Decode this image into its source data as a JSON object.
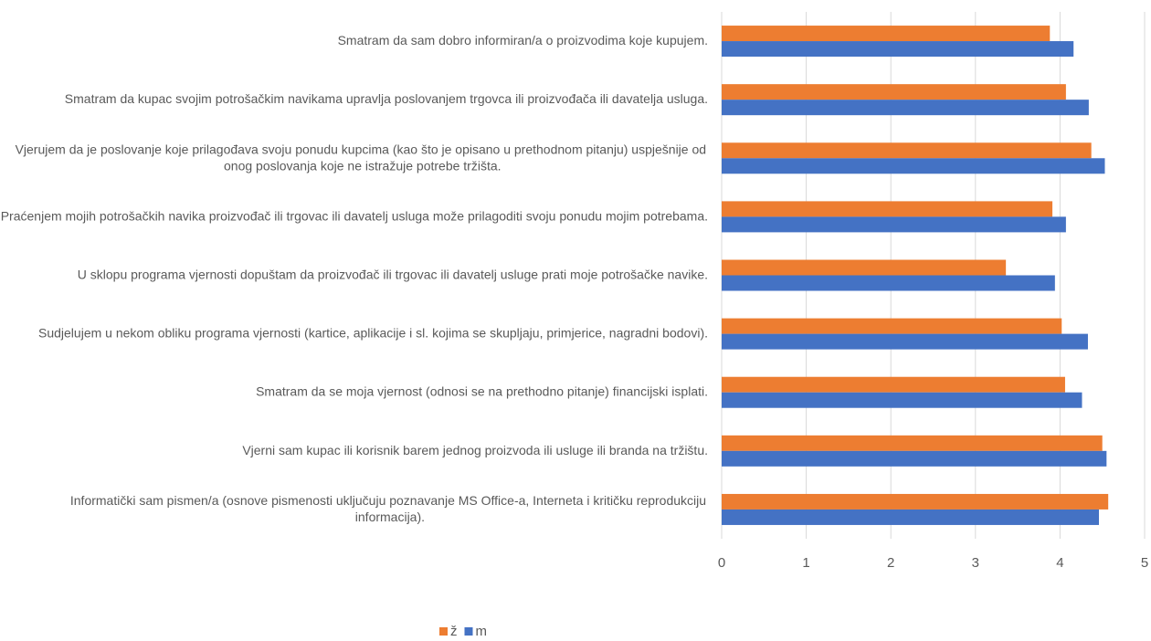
{
  "chart_data": {
    "type": "bar",
    "orientation": "horizontal",
    "categories": [
      "Smatram da sam dobro informiran/a o proizvodima koje kupujem.",
      "Smatram da kupac svojim potrošačkim navikama upravlja poslovanjem trgovca ili proizvođača ili davatelja usluga.",
      "Vjerujem da je poslovanje koje prilagođava svoju ponudu kupcima (kao što je opisano u prethodnom pitanju) uspješnije od onog poslovanja koje ne istražuje potrebe tržišta.",
      "Praćenjem mojih potrošačkih navika proizvođač ili trgovac ili davatelj usluga može prilagoditi svoju ponudu mojim potrebama.",
      "U sklopu programa vjernosti dopuštam da proizvođač ili trgovac ili davatelj usluge prati moje potrošačke navike.",
      "Sudjelujem u nekom obliku programa vjernosti (kartice, aplikacije i sl. kojima se skupljaju, primjerice, nagradni bodovi).",
      "Smatram da se moja vjernost (odnosi se na prethodno pitanje) financijski isplati.",
      "Vjerni sam kupac ili korisnik barem jednog proizvoda ili usluge ili branda na tržištu.",
      "Informatički sam pismen/a (osnove pismenosti uključuju poznavanje MS Office-a, Interneta i kritičku reprodukciju informacija)."
    ],
    "series": [
      {
        "name": "ž",
        "color": "#ed7d31",
        "values": [
          3.88,
          4.07,
          4.37,
          3.91,
          3.36,
          4.02,
          4.06,
          4.5,
          4.57
        ]
      },
      {
        "name": "m",
        "color": "#4472c4",
        "values": [
          4.16,
          4.34,
          4.53,
          4.07,
          3.94,
          4.33,
          4.26,
          4.55,
          4.46
        ]
      }
    ],
    "xlim": [
      0,
      5
    ],
    "xticks": [
      0,
      1,
      2,
      3,
      4,
      5
    ],
    "grid": true,
    "legend": "bottom"
  }
}
